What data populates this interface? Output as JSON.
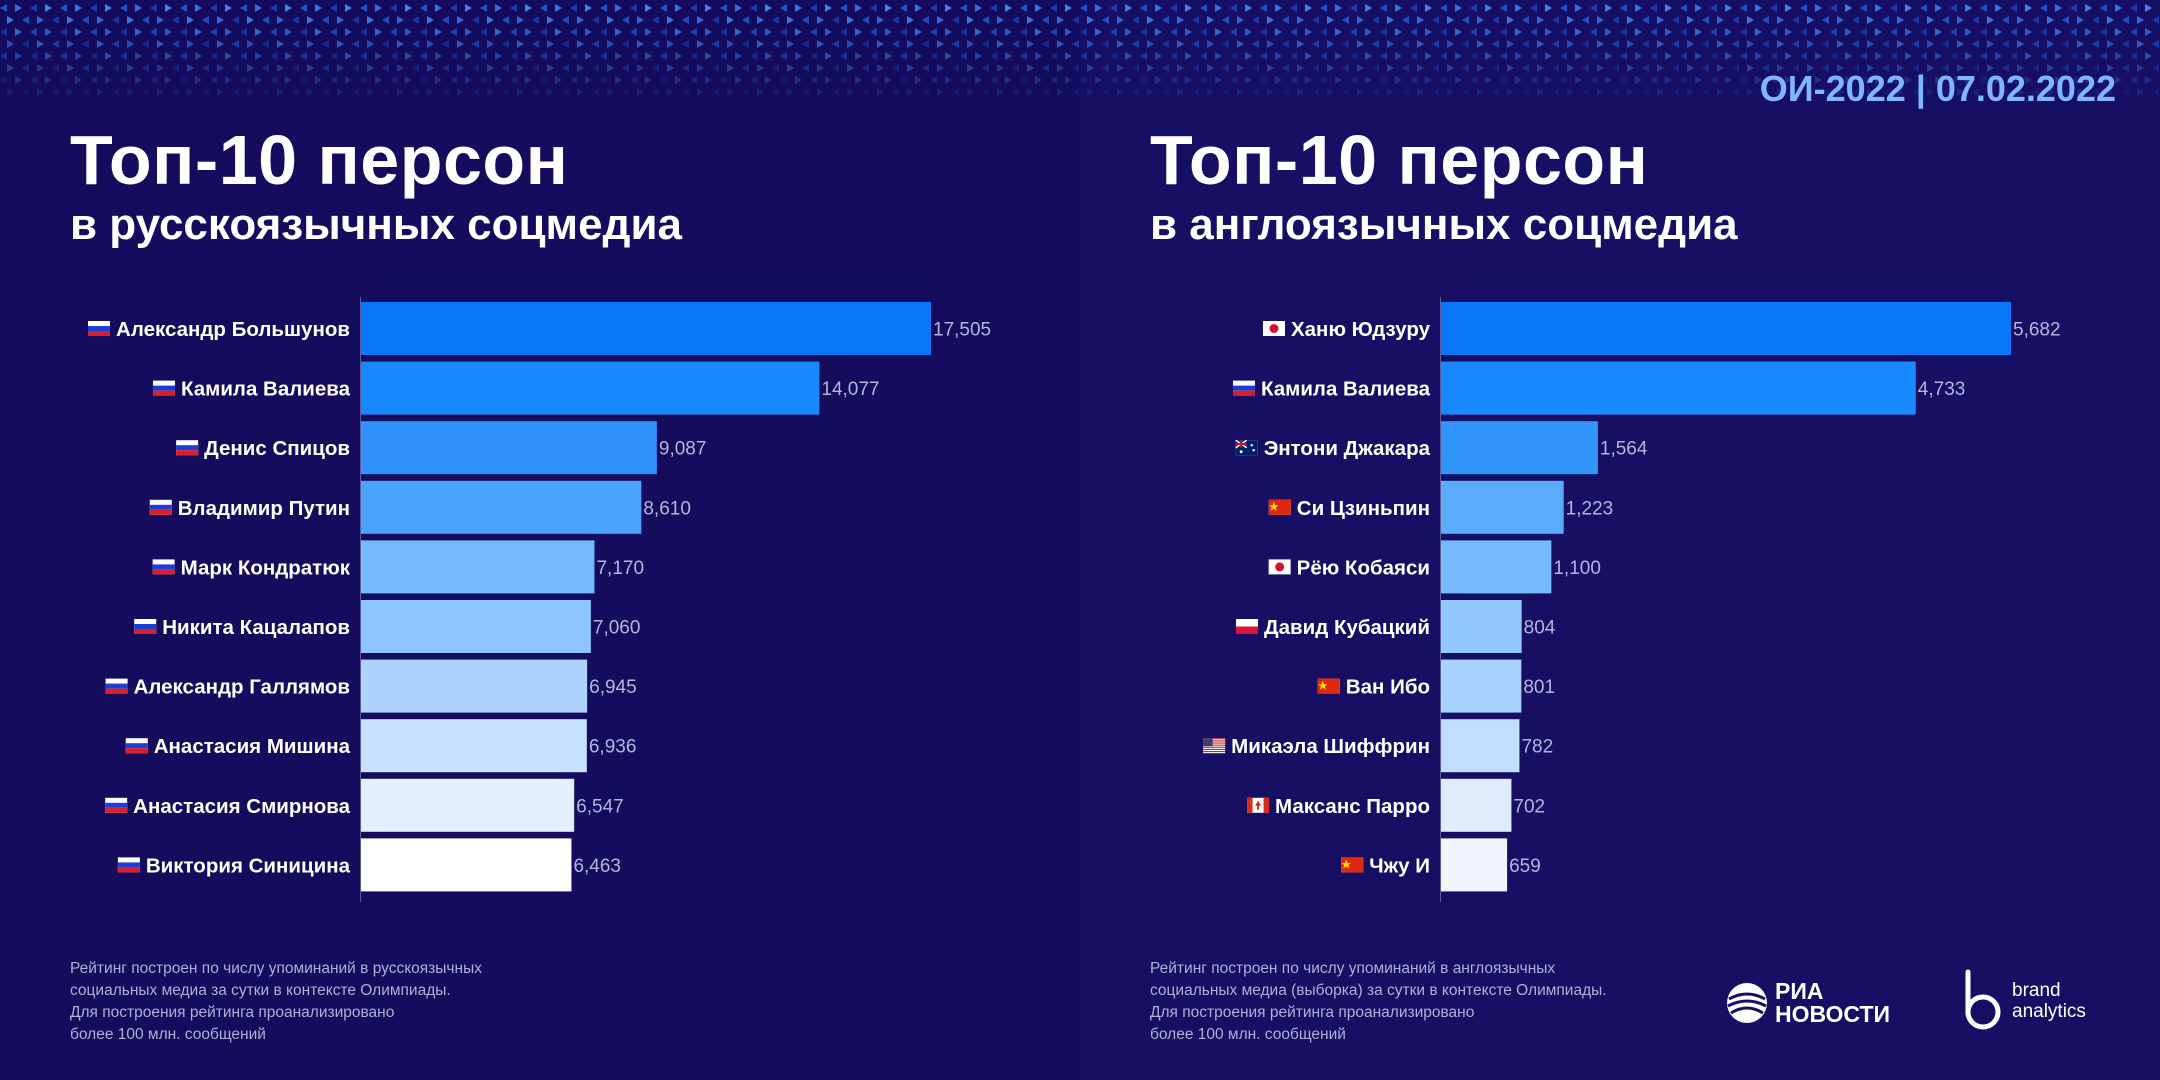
{
  "header": {
    "date": "ОИ-2022 | 07.02.2022"
  },
  "chart_data": [
    {
      "type": "bar",
      "orientation": "horizontal",
      "title": "Топ-10 персон",
      "subtitle": "в русскоязычных соцмедиа",
      "categories": [
        "Александр Большунов",
        "Камила Валиева",
        "Денис Спицов",
        "Владимир Путин",
        "Марк Кондратюк",
        "Никита Кацалапов",
        "Александр Галлямов",
        "Анастасия Мишина",
        "Анастасия Смирнова",
        "Виктория Синицина"
      ],
      "flags": [
        "ru",
        "ru",
        "ru",
        "ru",
        "ru",
        "ru",
        "ru",
        "ru",
        "ru",
        "ru"
      ],
      "values": [
        17505,
        14077,
        9087,
        8610,
        7170,
        7060,
        6945,
        6936,
        6547,
        6463
      ],
      "value_labels": [
        "17,505",
        "14,077",
        "9,087",
        "8,610",
        "7,170",
        "7,060",
        "6,945",
        "6,936",
        "6,547",
        "6,463"
      ],
      "xlim": [
        0,
        17505
      ],
      "colors": [
        "#0878f8",
        "#1a88ff",
        "#2f93fb",
        "#4aa3fd",
        "#74b9fd",
        "#8fc5fd",
        "#aed4fe",
        "#c8e1fe",
        "#e4f0ff",
        "#ffffff"
      ],
      "footnote": "Рейтинг построен по числу упоминаний в русскоязычных\nсоциальных медиа за сутки в контексте Олимпиады.\nДля построения рейтинга проанализировано\nболее 100 млн. сообщений"
    },
    {
      "type": "bar",
      "orientation": "horizontal",
      "title": "Топ-10 персон",
      "subtitle": "в англоязычных соцмедиа",
      "categories": [
        "Ханю Юдзуру",
        "Камила Валиева",
        "Энтони Джакара",
        "Си Цзиньпин",
        "Рёю Кобаяси",
        "Давид Кубацкий",
        "Ван Ибо",
        "Микаэла Шиффрин",
        "Максанс Парро",
        "Чжу И"
      ],
      "flags": [
        "jp",
        "ru",
        "au",
        "cn",
        "jp",
        "pl",
        "cn",
        "us",
        "ca",
        "cn"
      ],
      "values": [
        5682,
        4733,
        1564,
        1223,
        1100,
        804,
        801,
        782,
        702,
        659
      ],
      "value_labels": [
        "5,682",
        "4,733",
        "1,564",
        "1,223",
        "1,100",
        "804",
        "801",
        "782",
        "702",
        "659"
      ],
      "xlim": [
        0,
        5682
      ],
      "colors": [
        "#0878f8",
        "#1a88ff",
        "#3195f9",
        "#58acfb",
        "#75bbfd",
        "#93c8fd",
        "#a7d2fe",
        "#c1defe",
        "#dfecfe",
        "#f1f6fe"
      ],
      "footnote": "Рейтинг построен по числу упоминаний в англоязычных\nсоциальных медиа (выборка) за сутки в контексте Олимпиады.\nДля построения рейтинга проанализировано\nболее 100 млн. сообщений"
    }
  ],
  "logos": {
    "ria_line1": "РИА",
    "ria_line2": "НОВОСТИ",
    "ba_line1": "brand",
    "ba_line2": "analytics"
  }
}
